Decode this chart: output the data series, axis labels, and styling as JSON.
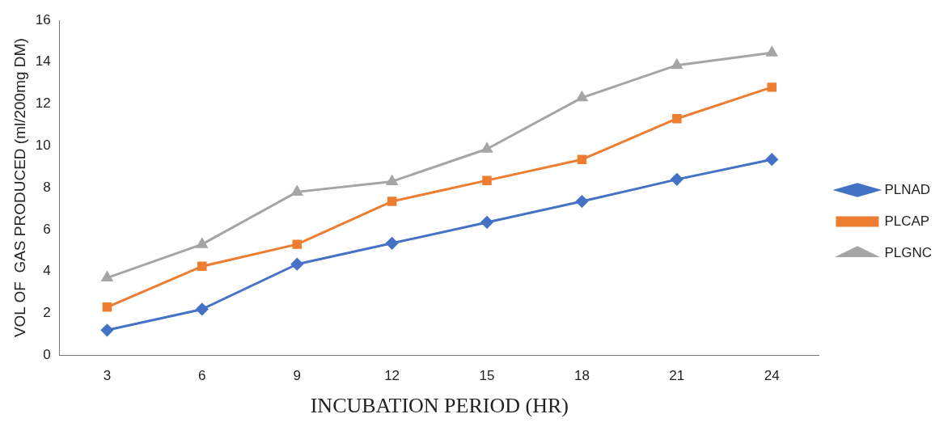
{
  "chart_data": {
    "type": "line",
    "xlabel": "INCUBATION PERIOD (HR)",
    "ylabel": "VOL OF  GAS PRODUCED (ml/200mg DM)",
    "categories": [
      "3",
      "6",
      "9",
      "12",
      "15",
      "18",
      "21",
      "24"
    ],
    "series": [
      {
        "name": "PLNAD",
        "color": "#4472c4",
        "marker": "diamond",
        "values": [
          1.2,
          2.2,
          4.35,
          5.35,
          6.35,
          7.35,
          8.4,
          9.35
        ]
      },
      {
        "name": "PLCAP",
        "color": "#ed7d31",
        "marker": "square",
        "values": [
          2.3,
          4.25,
          5.3,
          7.35,
          8.35,
          9.35,
          11.3,
          12.8
        ]
      },
      {
        "name": "PLGNC",
        "color": "#a5a5a5",
        "marker": "triangle",
        "values": [
          3.7,
          5.3,
          7.8,
          8.3,
          9.85,
          12.3,
          13.85,
          14.45
        ]
      }
    ],
    "ylim": [
      0,
      16
    ],
    "yticks": [
      0,
      2,
      4,
      6,
      8,
      10,
      12,
      14,
      16
    ],
    "grid": false,
    "legend": "right",
    "line_style": "solid"
  }
}
